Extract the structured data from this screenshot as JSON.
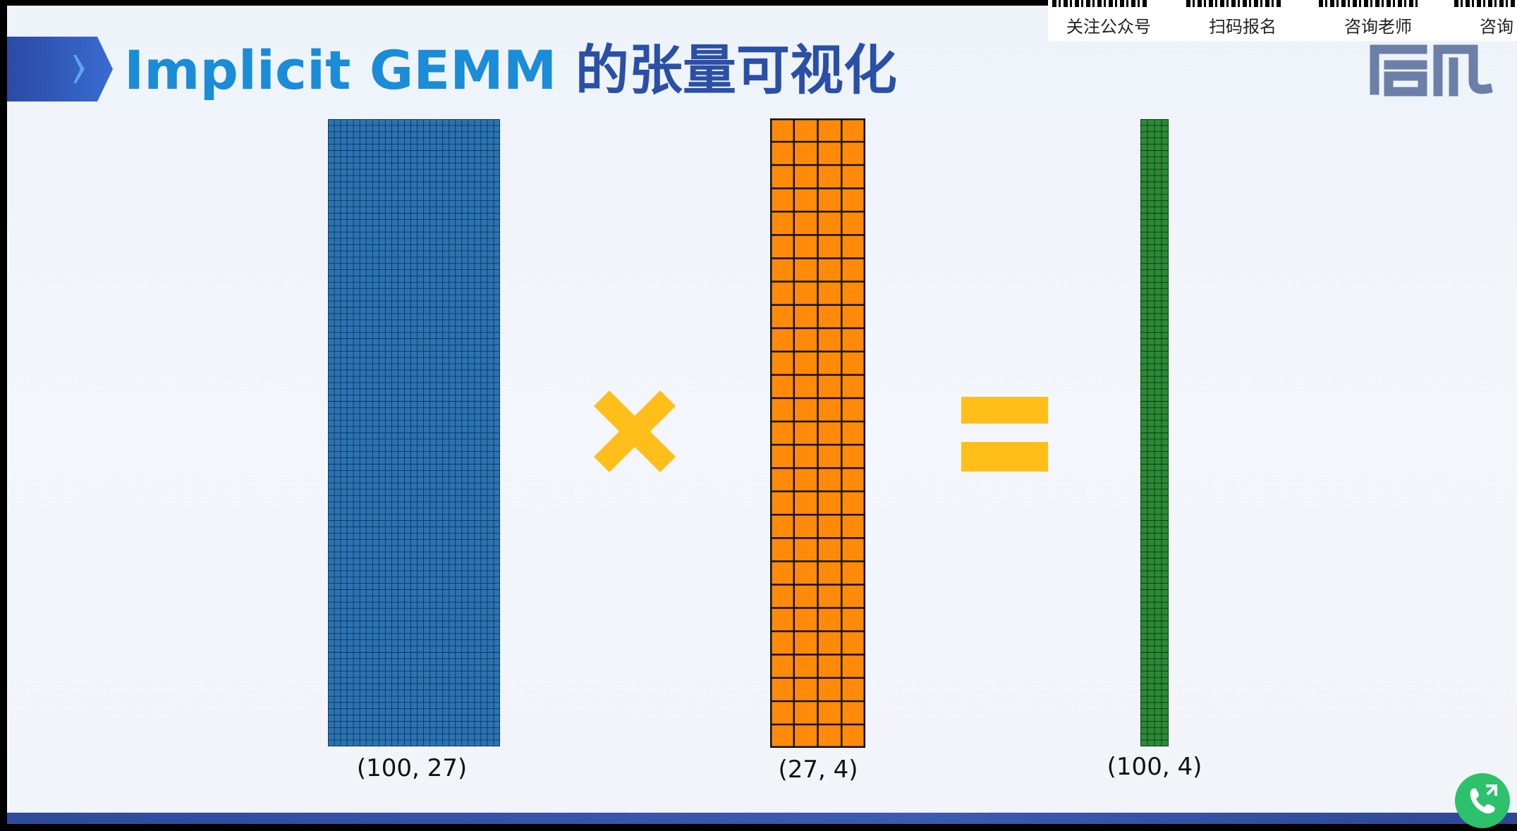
{
  "slide": {
    "title_prefix": "Implicit GEMM ",
    "title_cn": "的张量可视化"
  },
  "matrices": [
    {
      "label": "(100, 27)",
      "rows": 100,
      "cols": 27,
      "fill": "#2b74b2",
      "stroke": "#0e3660"
    },
    {
      "label": "(27, 4)",
      "rows": 27,
      "cols": 4,
      "fill": "#ff8a0a",
      "stroke": "#111111"
    },
    {
      "label": "(100, 4)",
      "rows": 100,
      "cols": 4,
      "fill": "#2b8a35",
      "stroke": "#0a3a10"
    }
  ],
  "operators": {
    "times": "multiply-sign",
    "equals": "equals-sign",
    "color": "#ffbe1a"
  },
  "overlay": {
    "qr_labels": [
      "关注公众号",
      "扫码报名",
      "咨询老师",
      "咨询"
    ]
  },
  "colors": {
    "title_latin": "#1a8cd8",
    "title_cn": "#2a4fa6",
    "brand": "#6b7fa8"
  }
}
